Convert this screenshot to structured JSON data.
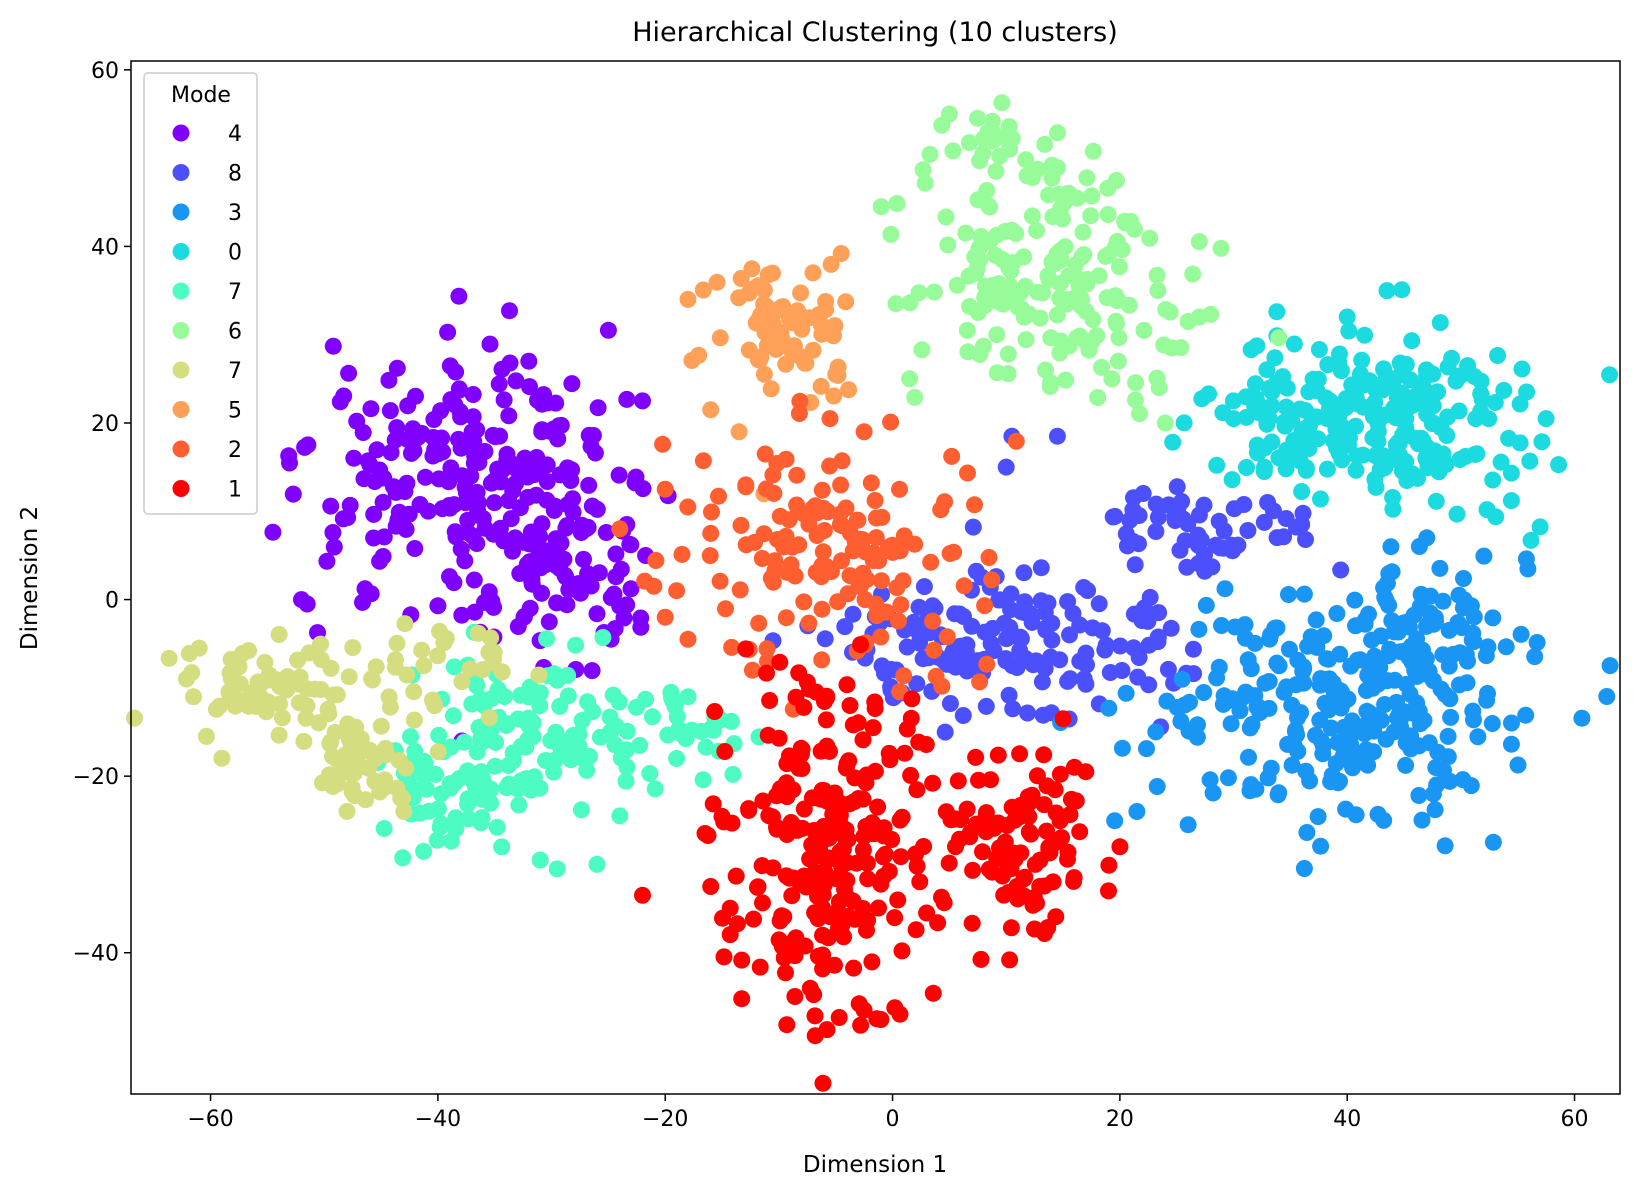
{
  "chart_data": {
    "type": "scatter",
    "title": "Hierarchical Clustering (10 clusters)",
    "xlabel": "Dimension 1",
    "ylabel": "Dimension 2",
    "xlim": [
      -67,
      64
    ],
    "ylim": [
      -56,
      61
    ],
    "xticks": [
      -60,
      -40,
      -20,
      0,
      20,
      40,
      60
    ],
    "yticks": [
      -40,
      -20,
      0,
      20,
      40,
      60
    ],
    "grid": false,
    "legend": {
      "title": "Mode",
      "placement": "top-left",
      "entries": [
        {
          "label": "4",
          "color": "#8000ff"
        },
        {
          "label": "8",
          "color": "#4c50fc"
        },
        {
          "label": "3",
          "color": "#1996f3"
        },
        {
          "label": "0",
          "color": "#1cdbe0"
        },
        {
          "label": "7",
          "color": "#4dfcc2"
        },
        {
          "label": "6",
          "color": "#98fb9a"
        },
        {
          "label": "7",
          "color": "#d4dd80"
        },
        {
          "label": "5",
          "color": "#ffa058"
        },
        {
          "label": "2",
          "color": "#ff5e31"
        },
        {
          "label": "1",
          "color": "#ff0000"
        }
      ]
    },
    "clusters": [
      {
        "label": "4",
        "color": "#8000ff",
        "n": 300,
        "blobs": [
          {
            "cx": -38,
            "cy": 13,
            "sx": 7,
            "sy": 8,
            "w": 0.6
          },
          {
            "cx": -30,
            "cy": 5,
            "sx": 4,
            "sy": 7,
            "w": 0.4
          }
        ],
        "extras": [
          [
            -25,
            30.5
          ],
          [
            -22,
            22.5
          ],
          [
            -52,
            0
          ],
          [
            -51.5,
            -0.5
          ],
          [
            -32,
            27
          ]
        ]
      },
      {
        "label": "8",
        "color": "#4c50fc",
        "n": 220,
        "blobs": [
          {
            "cx": 10,
            "cy": -5,
            "sx": 8,
            "sy": 4,
            "w": 0.75
          },
          {
            "cx": 26,
            "cy": 8,
            "sx": 5,
            "sy": 2.5,
            "w": 0.25
          }
        ],
        "extras": [
          [
            10.5,
            18.5
          ],
          [
            14.5,
            18.5
          ],
          [
            10,
            15
          ],
          [
            36,
            8.5
          ],
          [
            33,
            11
          ]
        ]
      },
      {
        "label": "3",
        "color": "#1996f3",
        "n": 320,
        "blobs": [
          {
            "cx": 38,
            "cy": -13,
            "sx": 8,
            "sy": 6,
            "w": 0.7
          },
          {
            "cx": 46,
            "cy": -5,
            "sx": 4,
            "sy": 5,
            "w": 0.3
          }
        ],
        "extras": [
          [
            26,
            -25.5
          ],
          [
            21.5,
            -24
          ],
          [
            47,
            7
          ]
        ]
      },
      {
        "label": "0",
        "color": "#1cdbe0",
        "n": 240,
        "blobs": [
          {
            "cx": 43,
            "cy": 21,
            "sx": 6.5,
            "sy": 5,
            "w": 1
          }
        ],
        "extras": [
          [
            43.5,
            35
          ],
          [
            57.5,
            20.5
          ],
          [
            30,
            20.5
          ],
          [
            40,
            32
          ]
        ]
      },
      {
        "label": "7",
        "color": "#4dfcc2",
        "n": 190,
        "blobs": [
          {
            "cx": -33,
            "cy": -15,
            "sx": 5,
            "sy": 5,
            "w": 0.55
          },
          {
            "cx": -40,
            "cy": -22,
            "sx": 2.5,
            "sy": 3,
            "w": 0.25
          },
          {
            "cx": -20,
            "cy": -14,
            "sx": 4,
            "sy": 3,
            "w": 0.2
          }
        ],
        "extras": [
          [
            -29.5,
            -30.5
          ],
          [
            -26,
            -30
          ],
          [
            -24,
            -24.5
          ],
          [
            -31,
            -29.5
          ],
          [
            -19,
            -18
          ]
        ]
      },
      {
        "label": "6",
        "color": "#98fb9a",
        "n": 200,
        "blobs": [
          {
            "cx": 14,
            "cy": 36,
            "sx": 6,
            "sy": 7,
            "w": 0.85
          },
          {
            "cx": 9,
            "cy": 50,
            "sx": 3,
            "sy": 3,
            "w": 0.15
          }
        ],
        "extras": [
          [
            -1,
            44.5
          ],
          [
            1.5,
            25
          ],
          [
            24,
            20
          ],
          [
            26,
            31.5
          ],
          [
            27,
            32
          ],
          [
            28,
            32.3
          ],
          [
            5,
            55
          ]
        ]
      },
      {
        "label": "7",
        "color": "#d4dd80",
        "n": 150,
        "blobs": [
          {
            "cx": -55,
            "cy": -10,
            "sx": 4,
            "sy": 3,
            "w": 0.45
          },
          {
            "cx": -47,
            "cy": -18,
            "sx": 2.5,
            "sy": 3.5,
            "w": 0.35
          },
          {
            "cx": -39,
            "cy": -7,
            "sx": 3.5,
            "sy": 2.5,
            "w": 0.2
          }
        ],
        "extras": [
          [
            -61.5,
            -11
          ],
          [
            -61,
            -5.5
          ],
          [
            -43,
            -24
          ],
          [
            -48,
            -24
          ]
        ]
      },
      {
        "label": "5",
        "color": "#ffa058",
        "n": 75,
        "blobs": [
          {
            "cx": -10,
            "cy": 30,
            "sx": 3.5,
            "sy": 4.5,
            "w": 1
          }
        ],
        "extras": [
          [
            -13.5,
            19
          ],
          [
            -16,
            21.5
          ],
          [
            -5,
            25.5
          ],
          [
            -7,
            37
          ],
          [
            -18,
            34
          ]
        ]
      },
      {
        "label": "2",
        "color": "#ff5e31",
        "n": 150,
        "blobs": [
          {
            "cx": -4,
            "cy": 6,
            "sx": 6,
            "sy": 6.5,
            "w": 1
          }
        ],
        "extras": [
          [
            -19,
            1
          ],
          [
            -20,
            -2
          ],
          [
            -21,
            1.5
          ],
          [
            -16,
            7.5
          ],
          [
            -20,
            12.5
          ],
          [
            -24,
            8
          ],
          [
            -18,
            -4.5
          ],
          [
            -5.5,
            20.5
          ],
          [
            -11,
            -7
          ]
        ]
      },
      {
        "label": "1",
        "color": "#ff0000",
        "n": 340,
        "blobs": [
          {
            "cx": -6,
            "cy": -28,
            "sx": 4,
            "sy": 10,
            "w": 0.7
          },
          {
            "cx": 11,
            "cy": -28,
            "sx": 4,
            "sy": 5,
            "w": 0.3
          }
        ],
        "extras": [
          [
            -22,
            -33.5
          ],
          [
            -16.5,
            -26.5
          ],
          [
            -16,
            -32.5
          ],
          [
            20,
            -28
          ],
          [
            19,
            -33
          ],
          [
            16,
            -19
          ],
          [
            17,
            -19.5
          ],
          [
            -2.5,
            -46.5
          ],
          [
            15,
            -13.5
          ],
          [
            3,
            -35.5
          ]
        ]
      }
    ]
  }
}
